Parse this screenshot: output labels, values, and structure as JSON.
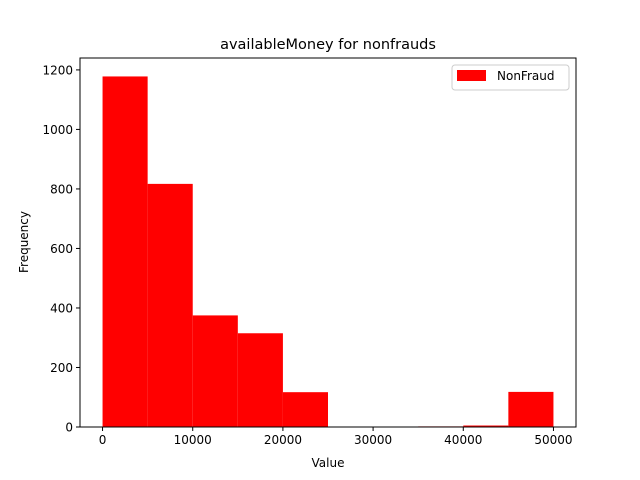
{
  "chart_data": {
    "type": "bar",
    "title": "availableMoney for nonfrauds",
    "xlabel": "Value",
    "ylabel": "Frequency",
    "bin_edges": [
      0,
      5000,
      10000,
      15000,
      20000,
      25000,
      30000,
      35000,
      40000,
      45000,
      50000
    ],
    "series": [
      {
        "name": "NonFraud",
        "color": "#ff0000",
        "values": [
          1178,
          817,
          375,
          315,
          117,
          0,
          0,
          2,
          5,
          118
        ]
      }
    ],
    "xlim": [
      -2500,
      52500
    ],
    "ylim": [
      0,
      1240
    ],
    "xticks": [
      0,
      10000,
      20000,
      30000,
      40000,
      50000
    ],
    "xtick_labels": [
      "0",
      "10000",
      "20000",
      "30000",
      "40000",
      "50000"
    ],
    "yticks": [
      0,
      200,
      400,
      600,
      800,
      1000,
      1200
    ],
    "ytick_labels": [
      "0",
      "200",
      "400",
      "600",
      "800",
      "1000",
      "1200"
    ],
    "legend_position": "top-right",
    "grid": false
  }
}
